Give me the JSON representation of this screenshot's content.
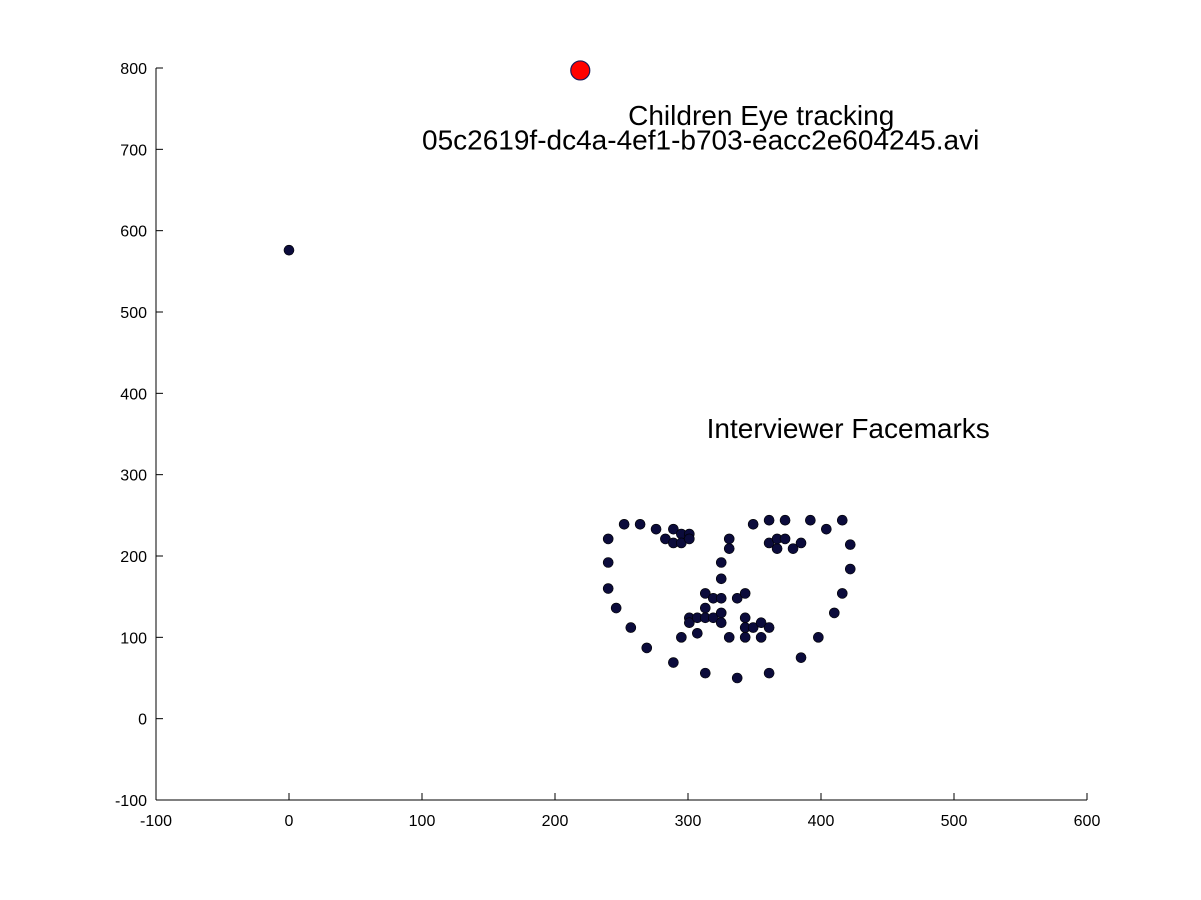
{
  "chart_data": {
    "type": "scatter",
    "xlim": [
      -100,
      600
    ],
    "ylim": [
      -100,
      800
    ],
    "xticks": [
      -100,
      0,
      100,
      200,
      300,
      400,
      500,
      600
    ],
    "yticks": [
      -100,
      0,
      100,
      200,
      300,
      400,
      500,
      600,
      700,
      800
    ],
    "grid": false,
    "annotations": [
      {
        "text": "Children Eye tracking",
        "x": 255,
        "y": 730
      },
      {
        "text": "05c2619f-dc4a-4ef1-b703-eacc2e604245.avi",
        "x": 100,
        "y": 700
      },
      {
        "text": "Interviewer Facemarks",
        "x": 314,
        "y": 345
      }
    ],
    "series": [
      {
        "marker_color": "#0b0b3b",
        "points": [
          [
            0,
            576
          ],
          [
            240,
            221
          ],
          [
            240,
            192
          ],
          [
            240,
            160
          ],
          [
            246,
            136
          ],
          [
            257,
            112
          ],
          [
            269,
            87
          ],
          [
            289,
            69
          ],
          [
            313,
            56
          ],
          [
            337,
            50
          ],
          [
            361,
            56
          ],
          [
            385,
            75
          ],
          [
            398,
            100
          ],
          [
            410,
            130
          ],
          [
            416,
            154
          ],
          [
            422,
            184
          ],
          [
            422,
            214
          ],
          [
            416,
            244
          ],
          [
            252,
            239
          ],
          [
            264,
            239
          ],
          [
            276,
            233
          ],
          [
            283,
            221
          ],
          [
            289,
            233
          ],
          [
            289,
            216
          ],
          [
            295,
            227
          ],
          [
            295,
            216
          ],
          [
            301,
            227
          ],
          [
            301,
            221
          ],
          [
            331,
            221
          ],
          [
            331,
            209
          ],
          [
            349,
            239
          ],
          [
            361,
            244
          ],
          [
            373,
            244
          ],
          [
            361,
            216
          ],
          [
            367,
            209
          ],
          [
            367,
            221
          ],
          [
            373,
            221
          ],
          [
            379,
            209
          ],
          [
            385,
            216
          ],
          [
            392,
            244
          ],
          [
            404,
            233
          ],
          [
            325,
            192
          ],
          [
            325,
            172
          ],
          [
            313,
            154
          ],
          [
            319,
            148
          ],
          [
            325,
            148
          ],
          [
            337,
            148
          ],
          [
            343,
            154
          ],
          [
            301,
            124
          ],
          [
            301,
            118
          ],
          [
            307,
            124
          ],
          [
            313,
            136
          ],
          [
            313,
            124
          ],
          [
            319,
            124
          ],
          [
            325,
            130
          ],
          [
            325,
            118
          ],
          [
            343,
            124
          ],
          [
            343,
            112
          ],
          [
            349,
            112
          ],
          [
            355,
            118
          ],
          [
            361,
            112
          ],
          [
            295,
            100
          ],
          [
            307,
            105
          ],
          [
            331,
            100
          ],
          [
            343,
            100
          ],
          [
            355,
            100
          ]
        ]
      },
      {
        "marker_color": "#ff0000",
        "points": [
          [
            219,
            797
          ]
        ]
      }
    ]
  }
}
